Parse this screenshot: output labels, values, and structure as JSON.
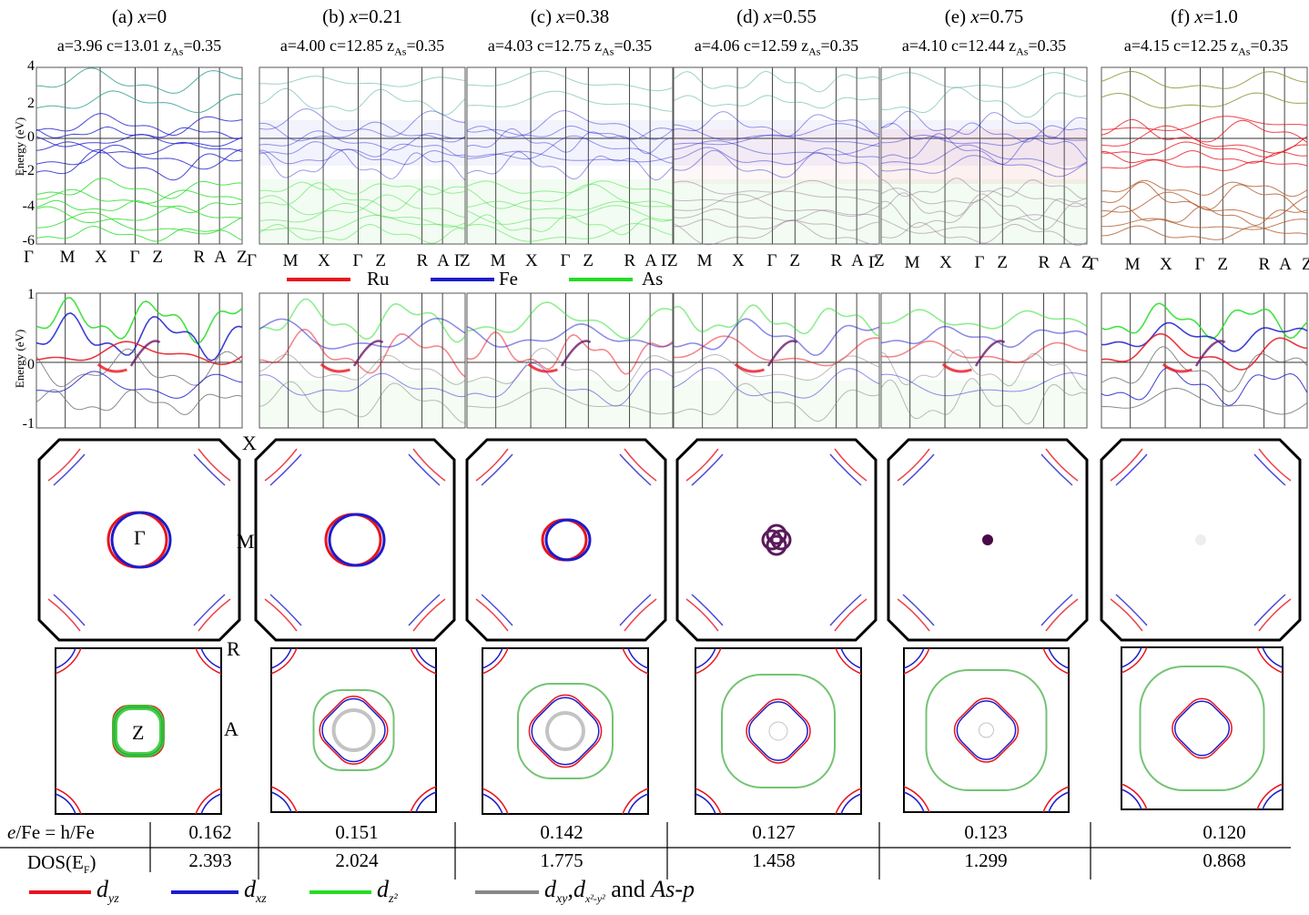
{
  "panels": [
    {
      "label_prefix": "(a) ",
      "x_label": "x",
      "x_value": "=0",
      "a": "a=3.96",
      "c": "c=13.01",
      "zas": "z",
      "zas_sub": "As",
      "zas_val": "=0.35"
    },
    {
      "label_prefix": "(b) ",
      "x_label": "x",
      "x_value": "=0.21",
      "a": "a=4.00",
      "c": "c=12.85",
      "zas": "z",
      "zas_sub": "As",
      "zas_val": "=0.35"
    },
    {
      "label_prefix": "(c) ",
      "x_label": "x",
      "x_value": "=0.38",
      "a": "a=4.03",
      "c": "c=12.75",
      "zas": "z",
      "zas_sub": "As",
      "zas_val": "=0.35"
    },
    {
      "label_prefix": "(d) ",
      "x_label": "x",
      "x_value": "=0.55",
      "a": "a=4.06",
      "c": "c=12.59",
      "zas": "z",
      "zas_sub": "As",
      "zas_val": "=0.35"
    },
    {
      "label_prefix": "(e) ",
      "x_label": "x",
      "x_value": "=0.75",
      "a": "a=4.10",
      "c": "c=12.44",
      "zas": "z",
      "zas_sub": "As",
      "zas_val": "=0.35"
    },
    {
      "label_prefix": "(f) ",
      "x_label": "x",
      "x_value": "=1.0",
      "a": "a=4.15",
      "c": "c=12.25",
      "zas": "z",
      "zas_sub": "As",
      "zas_val": "=0.35"
    }
  ],
  "band_axis": {
    "ylabel": "Energy (eV)",
    "ticks": [
      "4",
      "2",
      "0",
      "-2",
      "-4",
      "-6"
    ],
    "kpoints": [
      "Γ",
      "M",
      "X",
      "Γ",
      "Z",
      "R",
      "A",
      "Z"
    ]
  },
  "zoom_axis": {
    "ylabel": "Energy (eV)",
    "ticks": [
      "1",
      "0",
      "-1"
    ]
  },
  "element_legend": [
    {
      "name": "Ru",
      "color": "#e8141e"
    },
    {
      "name": "Fe",
      "color": "#1c1ccc"
    },
    {
      "name": "As",
      "color": "#22dd22"
    }
  ],
  "bz_points": {
    "X": "X",
    "M": "M",
    "R": "R",
    "A": "A",
    "Gamma": "Γ",
    "Z": "Z"
  },
  "table": {
    "row1_label": "e/Fe = h/Fe",
    "row1_label_italic": "e",
    "row1_label_rest": "/Fe = h/Fe",
    "row2_label": "DOS(E",
    "row2_label_sub": "F",
    "row2_label_end": ")",
    "row1_values": [
      "0.162",
      "0.151",
      "0.142",
      "0.127",
      "0.123",
      "0.120"
    ],
    "row2_values": [
      "2.393",
      "2.024",
      "1.775",
      "1.458",
      "1.299",
      "0.868"
    ]
  },
  "orbital_legend": [
    {
      "main": "d",
      "sub": "yz",
      "color": "#e8141e"
    },
    {
      "main": "d",
      "sub": "xz",
      "color": "#1c1ccc"
    },
    {
      "main": "d",
      "sub": "z²",
      "color": "#22dd22"
    },
    {
      "main": "d",
      "sub": "xy",
      "color": "#888888",
      "extra_sep": ",",
      "extra_main": "d",
      "extra_sub": "x²-y²",
      "tail": " and ",
      "tail_it": "As-p"
    }
  ]
}
